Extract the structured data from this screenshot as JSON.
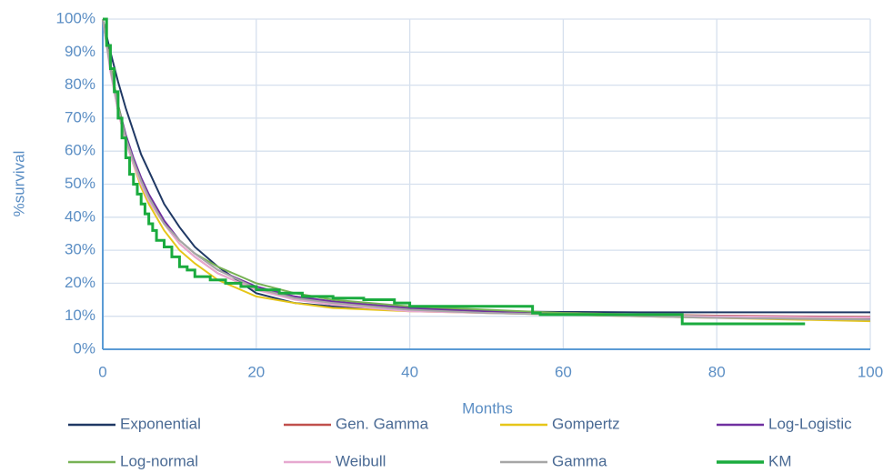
{
  "chart_data": {
    "type": "line",
    "x_label": "Months",
    "y_label": "%survival",
    "xlim": [
      0,
      100
    ],
    "xticks": [
      0,
      20,
      40,
      60,
      80,
      100
    ],
    "ylim": [
      0,
      100
    ],
    "yticks": [
      {
        "value": 0,
        "label": "0%"
      },
      {
        "value": 10,
        "label": "10%"
      },
      {
        "value": 20,
        "label": "20%"
      },
      {
        "value": 30,
        "label": "30%"
      },
      {
        "value": 40,
        "label": "40%"
      },
      {
        "value": 50,
        "label": "50%"
      },
      {
        "value": 60,
        "label": "60%"
      },
      {
        "value": 70,
        "label": "70%"
      },
      {
        "value": 80,
        "label": "80%"
      },
      {
        "value": 90,
        "label": "90%"
      },
      {
        "value": 100,
        "label": "100%"
      }
    ],
    "grid": true,
    "legend": "bottom",
    "x": [
      0,
      1,
      2,
      3,
      4,
      5,
      6,
      8,
      10,
      12,
      15,
      20,
      25,
      30,
      40,
      50,
      60,
      70,
      80,
      90,
      100
    ],
    "series": [
      {
        "name": "Exponential",
        "color": "#1f3864",
        "values": [
          100,
          90,
          81,
          73,
          66,
          59,
          54,
          44,
          37,
          31,
          25,
          17,
          14,
          13,
          12,
          11.5,
          11.3,
          11.2,
          11.2,
          11.2,
          11.2
        ]
      },
      {
        "name": "Gen. Gamma",
        "color": "#c0504d",
        "values": [
          100,
          85,
          72,
          63,
          56,
          50,
          45,
          38,
          32,
          28,
          23,
          18,
          16,
          14,
          12.5,
          11.5,
          11,
          10.5,
          10.2,
          10,
          9.8
        ]
      },
      {
        "name": "Gompertz",
        "color": "#e6c619",
        "values": [
          100,
          86,
          74,
          64,
          56,
          49,
          44,
          36,
          30,
          26,
          21,
          16,
          14,
          12.5,
          11.5,
          11,
          10.5,
          10,
          9.5,
          9,
          8.5
        ]
      },
      {
        "name": "Log-Logistic",
        "color": "#7030a0",
        "values": [
          100,
          86,
          74,
          65,
          58,
          52,
          47,
          39,
          33,
          29,
          24,
          19,
          16,
          14.5,
          12.5,
          11.5,
          11,
          10.5,
          10,
          9.8,
          9.5
        ]
      },
      {
        "name": "Log-normal",
        "color": "#77b255",
        "values": [
          100,
          86,
          74,
          64,
          57,
          51,
          46,
          38,
          33,
          29,
          25,
          20,
          17,
          15,
          13,
          12,
          11,
          10.5,
          10,
          9.5,
          9
        ]
      },
      {
        "name": "Weibull",
        "color": "#e6a8d0",
        "values": [
          100,
          84,
          72,
          63,
          56,
          50,
          45,
          38,
          32,
          28,
          23,
          18,
          15,
          13.5,
          11.5,
          11,
          10.5,
          10.2,
          10,
          9.8,
          9.6
        ]
      },
      {
        "name": "Gamma",
        "color": "#a6a6a6",
        "values": [
          100,
          85,
          73,
          64,
          57,
          51,
          46,
          38,
          33,
          29,
          24,
          18.5,
          15.5,
          14,
          12,
          11,
          10.5,
          10,
          9.5,
          9.2,
          9
        ]
      },
      {
        "name": "KM",
        "color": "#1aab3e",
        "step": true,
        "x": [
          0,
          0.5,
          1,
          1.5,
          2,
          2.5,
          3,
          3.5,
          4,
          4.5,
          5,
          5.5,
          6,
          6.5,
          7,
          8,
          9,
          10,
          11,
          12,
          14,
          16,
          18,
          20,
          23,
          26,
          30,
          34,
          38,
          40,
          56,
          57,
          75.5,
          91.5
        ],
        "values": [
          100,
          92,
          85,
          78,
          70,
          64,
          58,
          53,
          50,
          47,
          44,
          41,
          38,
          36,
          33,
          31,
          28,
          25,
          24,
          22,
          21,
          20,
          19,
          18,
          17,
          16,
          15.5,
          15,
          14,
          13,
          11,
          10.5,
          7.7,
          7.7
        ]
      }
    ]
  }
}
